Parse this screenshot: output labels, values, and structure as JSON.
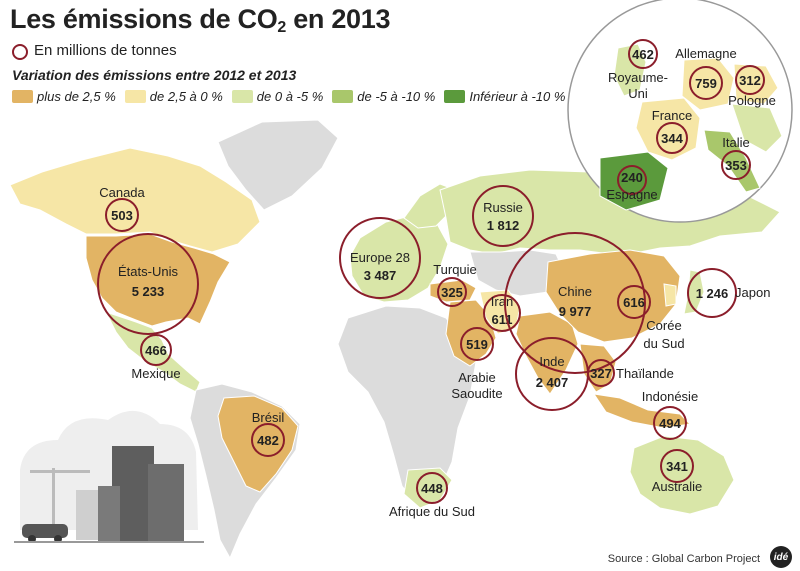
{
  "title": {
    "main": "Les émissions de CO",
    "sub": "2",
    "rest": " en 2013"
  },
  "legend": {
    "circle_label": "En millions de tonnes",
    "subtitle": "Variation des émissions entre 2012 et 2013",
    "items": [
      {
        "label": "plus de 2,5 %",
        "color": "#e2b464"
      },
      {
        "label": "de 2,5 à 0 %",
        "color": "#f6e6a6"
      },
      {
        "label": "de 0 à -5 %",
        "color": "#d9e6a8"
      },
      {
        "label": "de -5 à -10 %",
        "color": "#a9c76b"
      },
      {
        "label": "Inférieur à -10 %",
        "color": "#5b9a3c"
      }
    ]
  },
  "colors": {
    "circle": "#8b1e2b",
    "land_default": "#dcdcdc",
    "ocean": "#ffffff"
  },
  "regions": [
    {
      "name": "Canada",
      "value": "503"
    },
    {
      "name": "États-Unis",
      "value": "5 233"
    },
    {
      "name": "Mexique",
      "value": "466"
    },
    {
      "name": "Brésil",
      "value": "482"
    },
    {
      "name": "Europe 28",
      "value": "3 487"
    },
    {
      "name": "Russie",
      "value": "1 812"
    },
    {
      "name": "Turquie",
      "value": "325"
    },
    {
      "name": "Iran",
      "value": "611"
    },
    {
      "name": "Arabie Saoudite",
      "line1": "Arabie",
      "line2": "Saoudite",
      "value": "519"
    },
    {
      "name": "Chine",
      "value": "9 977"
    },
    {
      "name": "Inde",
      "value": "2 407"
    },
    {
      "name": "Corée du Sud",
      "line1": "Corée",
      "line2": "du Sud",
      "value": "616"
    },
    {
      "name": "Japon",
      "value": "1 246"
    },
    {
      "name": "Thaïlande",
      "value": "327"
    },
    {
      "name": "Indonésie",
      "value": "494"
    },
    {
      "name": "Australie",
      "value": "341"
    },
    {
      "name": "Afrique du Sud",
      "value": "448"
    }
  ],
  "inset": [
    {
      "name": "Royaume-Uni",
      "line1": "Royaume-",
      "line2": "Uni",
      "value": "462"
    },
    {
      "name": "Allemagne",
      "value": "759"
    },
    {
      "name": "Pologne",
      "value": "312"
    },
    {
      "name": "France",
      "value": "344"
    },
    {
      "name": "Italie",
      "value": "353"
    },
    {
      "name": "Espagne",
      "value": "240"
    }
  ],
  "source": "Source : Global Carbon Project",
  "logo_text": "idé"
}
